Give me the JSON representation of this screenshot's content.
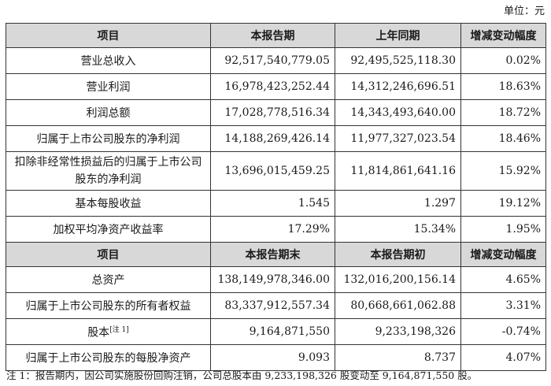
{
  "unit_label": "单位：元",
  "section1": {
    "headers": [
      "项目",
      "本报告期",
      "上年同期",
      "增减变动幅度"
    ],
    "rows": [
      {
        "label": "营业总收入",
        "current": "92,517,540,779.05",
        "previous": "92,495,525,118.30",
        "change": "0.02%"
      },
      {
        "label": "营业利润",
        "current": "16,978,423,252.44",
        "previous": "14,312,246,696.51",
        "change": "18.63%"
      },
      {
        "label": "利润总额",
        "current": "17,028,778,516.34",
        "previous": "14,343,493,640.00",
        "change": "18.72%"
      },
      {
        "label": "归属于上市公司股东的净利润",
        "current": "14,188,269,426.14",
        "previous": "11,977,327,023.54",
        "change": "18.46%"
      },
      {
        "label": "扣除非经常性损益后的归属于上市公司股东的净利润",
        "current": "13,696,015,459.25",
        "previous": "11,814,861,641.16",
        "change": "15.92%"
      },
      {
        "label": "基本每股收益",
        "current": "1.545",
        "previous": "1.297",
        "change": "19.12%"
      },
      {
        "label": "加权平均净资产收益率",
        "current": "17.29%",
        "previous": "15.34%",
        "change": "1.95%"
      }
    ]
  },
  "section2": {
    "headers": [
      "项目",
      "本报告期末",
      "本报告期初",
      "增减变动幅度"
    ],
    "rows": [
      {
        "label": "总资产",
        "end": "138,149,978,346.00",
        "begin": "132,016,200,156.14",
        "change": "4.65%"
      },
      {
        "label": "归属于上市公司股东的所有者权益",
        "end": "83,337,912,557.34",
        "begin": "80,668,661,062.88",
        "change": "3.31%"
      },
      {
        "label": "股本",
        "label_note": "[注 1]",
        "end": "9,164,871,550",
        "begin": "9,233,198,326",
        "change": "-0.74%"
      },
      {
        "label": "归属于上市公司股东的每股净资产",
        "end": "9.093",
        "begin": "8.737",
        "change": "4.07%"
      }
    ]
  },
  "footnote": "注 1：报告期内，因公司实施股份回购注销，公司总股本由 9,233,198,326 股变动至 9,164,871,550 股。"
}
